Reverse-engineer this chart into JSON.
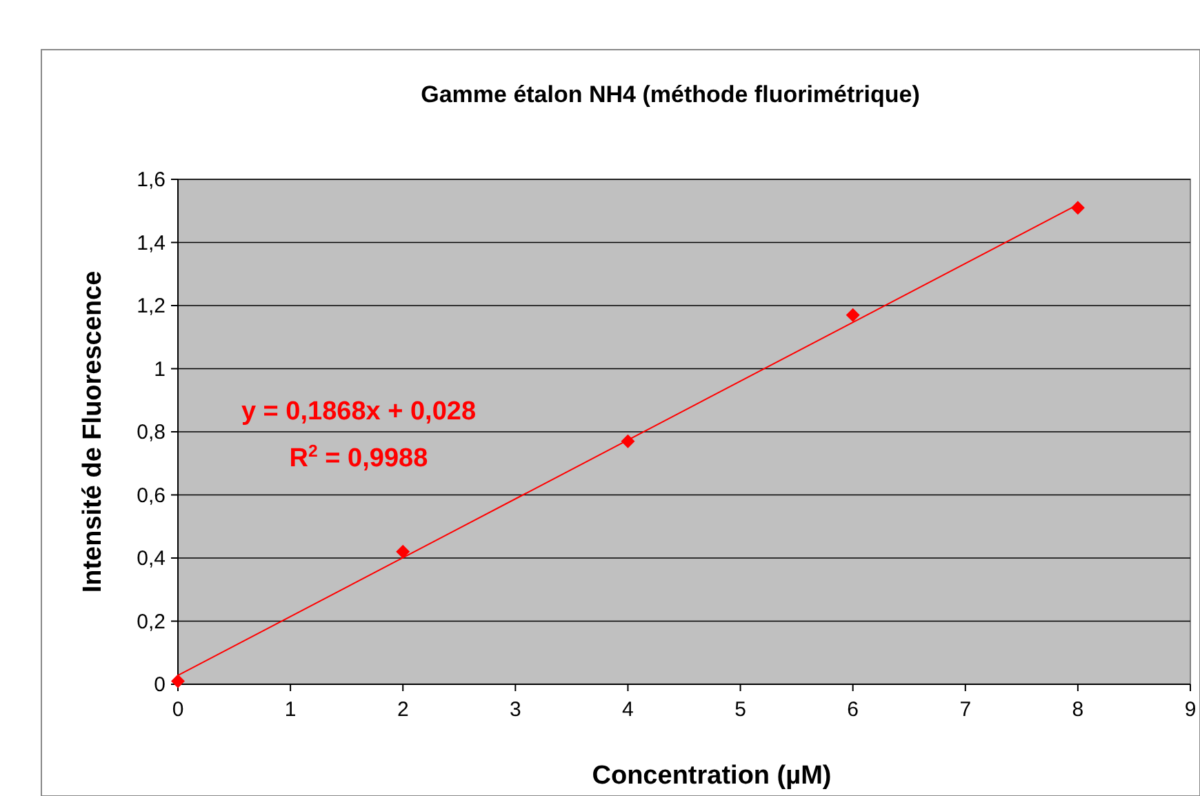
{
  "chart_data": {
    "type": "scatter",
    "title": "Gamme étalon NH4 (méthode fluorimétrique)",
    "xlabel": "Concentration (µM)",
    "ylabel": "Intensité de Fluorescence",
    "x": [
      0,
      2,
      4,
      6,
      8
    ],
    "series": [
      {
        "color": "#ff0000",
        "values": [
          0.01,
          0.42,
          0.77,
          1.17,
          1.51
        ],
        "marker": "diamond"
      },
      {
        "type": "line",
        "color": "#ff0000",
        "x": [
          0,
          8
        ],
        "values": [
          0.028,
          1.52
        ],
        "marker": "none",
        "line_style": "solid"
      }
    ],
    "xlim": [
      0,
      9
    ],
    "xticks": [
      0,
      1,
      2,
      3,
      4,
      5,
      6,
      7,
      8,
      9
    ],
    "ylim": [
      0,
      1.6
    ],
    "yticks": [
      0,
      {
        "value": 0.2,
        "label": "0,2"
      },
      {
        "value": 0.4,
        "label": "0,4"
      },
      {
        "value": 0.6,
        "label": "0,6"
      },
      {
        "value": 0.8,
        "label": "0,8"
      },
      1,
      {
        "value": 1.2,
        "label": "1,2"
      },
      {
        "value": 1.4,
        "label": "1,4"
      },
      {
        "value": 1.6,
        "label": "1,6"
      }
    ],
    "grid": "y",
    "annotations": [
      "y = 0,1868x + 0,028",
      "R$^{2}$ = 0,9988"
    ]
  }
}
